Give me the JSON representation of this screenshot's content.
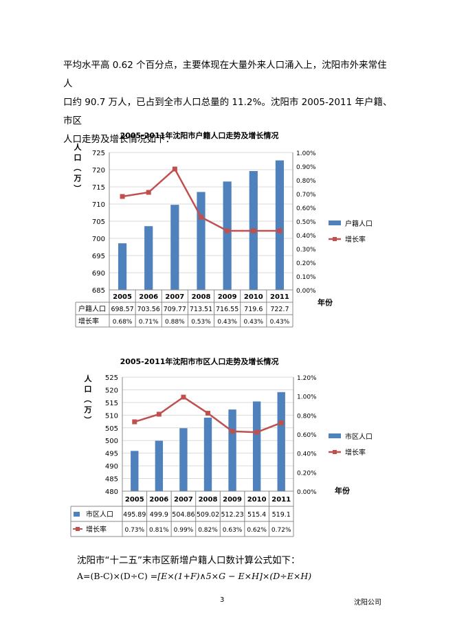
{
  "intro": {
    "line1": "平均水平高 0.62 个百分点，主要体现在大量外来人口涌入上，沈阳市外来常住人",
    "line2": "口约 90.7 万人，已占到全市人口总量的 11.2%。沈阳市 2005-2011 年户籍、市区",
    "line3": "人口走势及增长情况如下："
  },
  "chart_data": [
    {
      "type": "bar",
      "title": "2005-2011年沈阳市户籍人口走势及增长情况",
      "ylabel": "人口（万）",
      "xlabel": "年份",
      "categories": [
        "2005",
        "2006",
        "2007",
        "2008",
        "2009",
        "2010",
        "2011"
      ],
      "ylim": [
        685,
        725
      ],
      "yticks": [
        "685",
        "690",
        "695",
        "700",
        "705",
        "710",
        "715",
        "720",
        "725"
      ],
      "y2lim": [
        0,
        1.0
      ],
      "y2ticks": [
        "0.00%",
        "0.10%",
        "0.20%",
        "0.30%",
        "0.40%",
        "0.50%",
        "0.60%",
        "0.70%",
        "0.80%",
        "0.90%",
        "1.00%"
      ],
      "series": [
        {
          "name": "户籍人口",
          "type": "bar",
          "color": "#4f81bd",
          "values": [
            698.57,
            703.56,
            709.77,
            713.51,
            716.55,
            719.6,
            722.7
          ],
          "labels": [
            "698.57",
            "703.56",
            "709.77",
            "713.51",
            "716.55",
            "719.6",
            "722.7"
          ]
        },
        {
          "name": "增长率",
          "type": "line",
          "axis": "right",
          "color": "#c0504d",
          "values": [
            0.68,
            0.71,
            0.88,
            0.53,
            0.43,
            0.43,
            0.43
          ],
          "labels": [
            "0.68%",
            "0.71%",
            "0.88%",
            "0.53%",
            "0.43%",
            "0.43%",
            "0.43%"
          ]
        }
      ],
      "legend": "right",
      "grid": true
    },
    {
      "type": "bar",
      "title": "2005-2011年沈阳市市区人口走势及增长情况",
      "ylabel": "人口（万）",
      "xlabel": "年份",
      "categories": [
        "2005",
        "2006",
        "2007",
        "2008",
        "2009",
        "2010",
        "2011"
      ],
      "ylim": [
        480,
        525
      ],
      "yticks": [
        "480",
        "485",
        "490",
        "495",
        "500",
        "505",
        "510",
        "515",
        "520",
        "525"
      ],
      "y2lim": [
        0,
        1.2
      ],
      "y2ticks": [
        "0.00%",
        "0.20%",
        "0.40%",
        "0.60%",
        "0.80%",
        "1.00%",
        "1.20%"
      ],
      "series": [
        {
          "name": "市区人口",
          "type": "bar",
          "color": "#4f81bd",
          "values": [
            495.89,
            499.9,
            504.86,
            509.02,
            512.23,
            515.4,
            519.1
          ],
          "labels": [
            "495.89",
            "499.9",
            "504.86",
            "509.02",
            "512.23",
            "515.4",
            "519.1"
          ]
        },
        {
          "name": "增长率",
          "type": "line",
          "axis": "right",
          "color": "#c0504d",
          "values": [
            0.73,
            0.81,
            0.99,
            0.82,
            0.63,
            0.62,
            0.72
          ],
          "labels": [
            "0.73%",
            "0.81%",
            "0.99%",
            "0.82%",
            "0.63%",
            "0.62%",
            "0.72%"
          ]
        }
      ],
      "legend": "right",
      "grid": true
    }
  ],
  "formula": {
    "label": "沈阳市“十二五”末市区新增户籍人口数计算公式如下：",
    "lhs": "A=(B-C)×(D÷C)",
    "rhs": "=[E×(1+F)∧5×G − E×H]×(D÷E×H)"
  },
  "footer": {
    "page_number": "3",
    "company": "沈阳公司"
  }
}
